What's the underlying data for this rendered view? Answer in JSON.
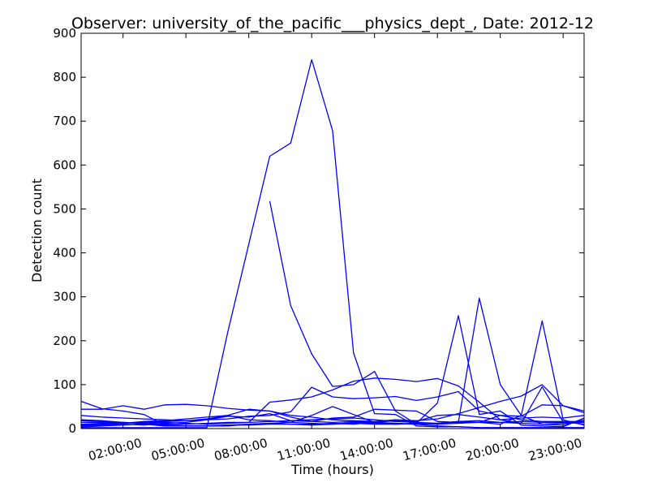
{
  "chart_data": {
    "type": "line",
    "title": "Observer: university_of_the_pacific___physics_dept_, Date: 2012-12",
    "xlabel": "Time (hours)",
    "ylabel": "Detection count",
    "x": [
      "00:00:00",
      "01:00:00",
      "02:00:00",
      "03:00:00",
      "04:00:00",
      "05:00:00",
      "06:00:00",
      "07:00:00",
      "08:00:00",
      "09:00:00",
      "10:00:00",
      "11:00:00",
      "12:00:00",
      "13:00:00",
      "14:00:00",
      "15:00:00",
      "16:00:00",
      "17:00:00",
      "18:00:00",
      "19:00:00",
      "20:00:00",
      "21:00:00",
      "22:00:00",
      "23:00:00",
      "24:00:00"
    ],
    "x_tick_labels": [
      "02:00:00",
      "05:00:00",
      "08:00:00",
      "11:00:00",
      "14:00:00",
      "17:00:00",
      "20:00:00",
      "23:00:00"
    ],
    "ylim": [
      0,
      900
    ],
    "y_ticks": [
      0,
      100,
      200,
      300,
      400,
      500,
      600,
      700,
      800,
      900
    ],
    "grid": false,
    "line_color": "#0000ff",
    "series": [
      {
        "values": [
          2,
          2,
          2,
          2,
          2,
          2,
          2,
          220,
          420,
          620,
          650,
          840,
          678,
          172,
          34,
          32,
          6,
          4,
          4,
          2,
          2,
          2,
          2,
          2,
          2
        ]
      },
      {
        "values": [
          null,
          null,
          null,
          null,
          null,
          null,
          null,
          null,
          null,
          518,
          280,
          170,
          96,
          100,
          130,
          40,
          10,
          6,
          4,
          2,
          2,
          2,
          2,
          2,
          2
        ]
      },
      {
        "values": [
          62,
          45,
          40,
          32,
          8,
          6,
          6,
          8,
          10,
          12,
          14,
          12,
          10,
          14,
          12,
          10,
          12,
          58,
          257,
          32,
          40,
          8,
          6,
          4,
          24
        ]
      },
      {
        "values": [
          10,
          12,
          14,
          10,
          8,
          6,
          6,
          6,
          10,
          12,
          10,
          10,
          12,
          10,
          14,
          12,
          10,
          12,
          14,
          297,
          100,
          30,
          10,
          8,
          20
        ]
      },
      {
        "values": [
          4,
          6,
          8,
          10,
          6,
          6,
          6,
          8,
          8,
          10,
          10,
          8,
          10,
          12,
          10,
          10,
          12,
          10,
          12,
          14,
          10,
          30,
          245,
          20,
          8
        ]
      },
      {
        "values": [
          20,
          18,
          14,
          12,
          10,
          10,
          12,
          14,
          14,
          60,
          65,
          72,
          88,
          108,
          115,
          112,
          107,
          114,
          97,
          60,
          20,
          12,
          95,
          15,
          10
        ]
      },
      {
        "values": [
          44,
          44,
          52,
          44,
          54,
          55,
          52,
          46,
          42,
          40,
          26,
          16,
          24,
          26,
          44,
          42,
          40,
          16,
          14,
          14,
          14,
          16,
          14,
          14,
          14
        ]
      },
      {
        "values": [
          30,
          26,
          24,
          22,
          20,
          18,
          20,
          22,
          28,
          30,
          38,
          94,
          72,
          68,
          70,
          73,
          64,
          72,
          84,
          40,
          30,
          20,
          16,
          16,
          16
        ]
      },
      {
        "values": [
          8,
          10,
          12,
          14,
          16,
          18,
          22,
          30,
          44,
          40,
          30,
          26,
          20,
          18,
          16,
          20,
          18,
          22,
          34,
          48,
          62,
          74,
          100,
          52,
          40
        ]
      },
      {
        "values": [
          14,
          14,
          12,
          16,
          18,
          22,
          26,
          30,
          20,
          18,
          14,
          30,
          50,
          32,
          14,
          12,
          10,
          12,
          16,
          14,
          30,
          28,
          54,
          52,
          36
        ]
      },
      {
        "values": [
          6,
          8,
          10,
          8,
          12,
          14,
          20,
          28,
          26,
          34,
          18,
          16,
          14,
          16,
          14,
          18,
          16,
          30,
          32,
          26,
          20,
          24,
          26,
          24,
          30
        ]
      },
      {
        "values": [
          18,
          16,
          14,
          12,
          14,
          12,
          10,
          12,
          14,
          16,
          18,
          20,
          22,
          24,
          20,
          16,
          14,
          12,
          16,
          18,
          14,
          12,
          10,
          12,
          14
        ]
      }
    ]
  }
}
